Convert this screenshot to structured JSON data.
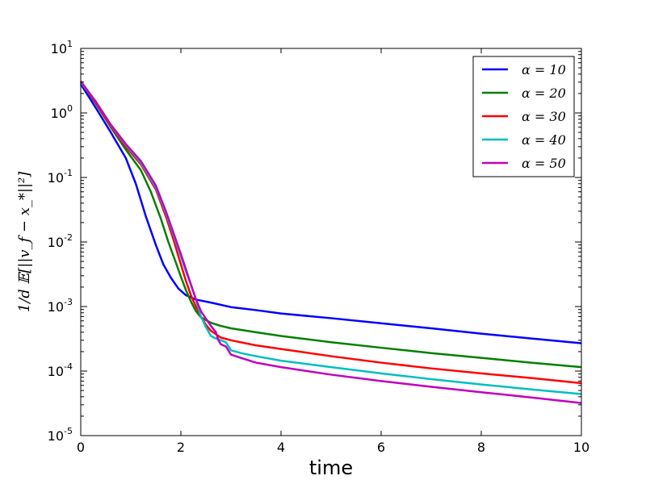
{
  "chart_data": {
    "type": "line",
    "title": "",
    "xlabel": "time",
    "ylabel": "1/d 𝔼[||v_f − x_*||²]",
    "x_ticks": [
      "0",
      "2",
      "4",
      "6",
      "8",
      "10"
    ],
    "y_ticks": [
      {
        "base": "10",
        "exp": "1"
      },
      {
        "base": "10",
        "exp": "0"
      },
      {
        "base": "10",
        "exp": "-1"
      },
      {
        "base": "10",
        "exp": "-2"
      },
      {
        "base": "10",
        "exp": "-3"
      },
      {
        "base": "10",
        "exp": "-4"
      },
      {
        "base": "10",
        "exp": "-5"
      }
    ],
    "xlim": [
      0,
      10
    ],
    "ylim": [
      1e-05,
      10
    ],
    "yscale": "log",
    "grid": false,
    "legend_position": "top-right",
    "series": [
      {
        "name": "α = 10",
        "color": "#0000ff",
        "x": [
          0,
          0.3,
          0.6,
          0.9,
          1.1,
          1.3,
          1.5,
          1.65,
          1.8,
          1.95,
          2.1,
          2.3,
          2.6,
          3.0,
          3.5,
          4,
          5,
          6,
          7,
          8,
          9,
          10
        ],
        "y": [
          2.8,
          1.2,
          0.5,
          0.2,
          0.08,
          0.025,
          0.009,
          0.0045,
          0.0028,
          0.0019,
          0.0015,
          0.00128,
          0.00115,
          0.00098,
          0.00088,
          0.00078,
          0.00066,
          0.00055,
          0.00046,
          0.00038,
          0.00032,
          0.00027
        ]
      },
      {
        "name": "α = 20",
        "color": "#008000",
        "x": [
          0,
          0.3,
          0.6,
          0.9,
          1.2,
          1.4,
          1.6,
          1.75,
          1.9,
          2.0,
          2.1,
          2.2,
          2.3,
          2.4,
          2.6,
          2.8,
          3.0,
          3.5,
          4,
          5,
          6,
          7,
          8,
          9,
          10
        ],
        "y": [
          3.0,
          1.4,
          0.6,
          0.27,
          0.13,
          0.06,
          0.023,
          0.01,
          0.0048,
          0.0029,
          0.0018,
          0.0012,
          0.00085,
          0.00068,
          0.00056,
          0.0005,
          0.00046,
          0.0004,
          0.00035,
          0.00028,
          0.00023,
          0.00019,
          0.00016,
          0.000135,
          0.000115
        ]
      },
      {
        "name": "α = 30",
        "color": "#ff0000",
        "x": [
          0,
          0.3,
          0.6,
          0.9,
          1.2,
          1.5,
          1.7,
          1.85,
          2.0,
          2.1,
          2.2,
          2.3,
          2.4,
          2.5,
          2.6,
          2.8,
          3.0,
          3.5,
          4,
          5,
          6,
          7,
          8,
          9,
          10
        ],
        "y": [
          3.0,
          1.45,
          0.62,
          0.3,
          0.16,
          0.065,
          0.025,
          0.011,
          0.0045,
          0.0025,
          0.0015,
          0.001,
          0.0007,
          0.00052,
          0.00042,
          0.00033,
          0.0003,
          0.00025,
          0.00022,
          0.00017,
          0.000135,
          0.00011,
          9.2e-05,
          7.8e-05,
          6.5e-05
        ]
      },
      {
        "name": "α = 40",
        "color": "#00bfbf",
        "x": [
          0,
          0.3,
          0.6,
          0.9,
          1.2,
          1.5,
          1.7,
          1.85,
          2.0,
          2.1,
          2.2,
          2.3,
          2.4,
          2.5,
          2.6,
          2.7,
          2.8,
          2.9,
          3.0,
          3.2,
          3.5,
          4,
          5,
          6,
          7,
          8,
          9,
          10
        ],
        "y": [
          3.0,
          1.5,
          0.65,
          0.32,
          0.17,
          0.07,
          0.028,
          0.013,
          0.006,
          0.0035,
          0.0022,
          0.0013,
          0.0007,
          0.00048,
          0.00035,
          0.00032,
          0.0003,
          0.00028,
          0.00021,
          0.00019,
          0.00017,
          0.000145,
          0.000115,
          9.2e-05,
          7.5e-05,
          6.2e-05,
          5.2e-05,
          4.4e-05
        ]
      },
      {
        "name": "α = 50",
        "color": "#bf00bf",
        "x": [
          0,
          0.3,
          0.6,
          0.9,
          1.2,
          1.5,
          1.7,
          1.85,
          2.0,
          2.1,
          2.2,
          2.3,
          2.4,
          2.5,
          2.6,
          2.7,
          2.75,
          2.8,
          2.9,
          3.0,
          3.2,
          3.5,
          4,
          5,
          6,
          7,
          8,
          9,
          10
        ],
        "y": [
          3.1,
          1.5,
          0.66,
          0.33,
          0.18,
          0.075,
          0.03,
          0.014,
          0.0065,
          0.0038,
          0.0022,
          0.0013,
          0.00085,
          0.00065,
          0.0005,
          0.0004,
          0.0003,
          0.00026,
          0.00024,
          0.00018,
          0.00016,
          0.000135,
          0.000115,
          8.8e-05,
          7e-05,
          5.7e-05,
          4.7e-05,
          3.9e-05,
          3.2e-05
        ]
      }
    ]
  }
}
